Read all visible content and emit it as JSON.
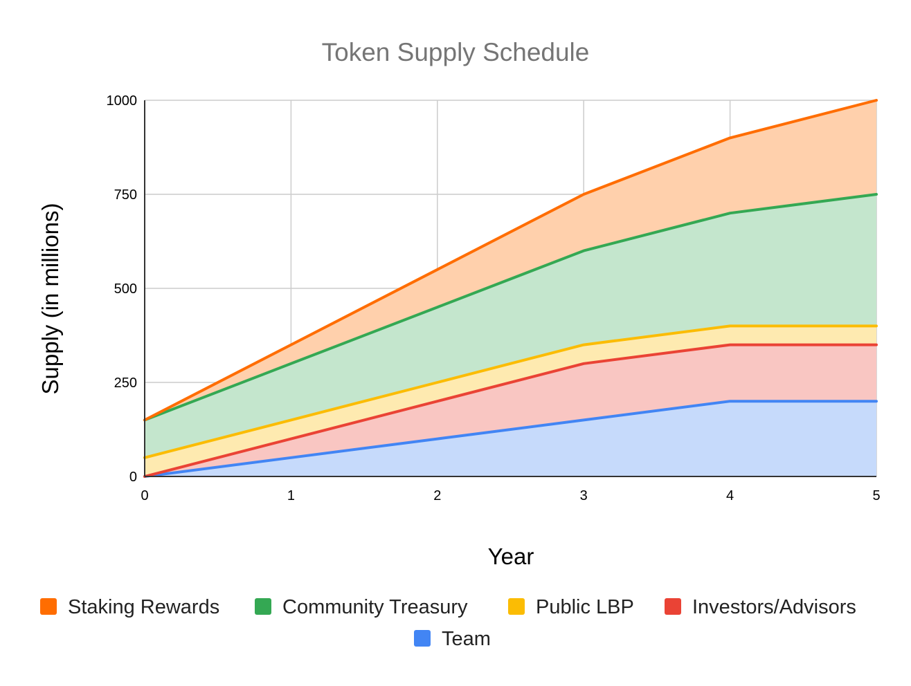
{
  "chart_data": {
    "type": "area",
    "stacked": true,
    "title": "Token Supply Schedule",
    "xlabel": "Year",
    "ylabel": "Supply (in millions)",
    "x": [
      0,
      1,
      2,
      3,
      4,
      5
    ],
    "xlim": [
      0,
      5
    ],
    "ylim": [
      0,
      1000
    ],
    "x_ticks": [
      "0",
      "1",
      "2",
      "3",
      "4",
      "5"
    ],
    "y_ticks": [
      "0",
      "250",
      "500",
      "750",
      "1000"
    ],
    "grid": true,
    "legend_position": "bottom",
    "series": [
      {
        "name": "Staking Rewards",
        "color": "#FF6D01",
        "fill": "#FFD0AC",
        "values": [
          0,
          50,
          100,
          150,
          200,
          250
        ]
      },
      {
        "name": "Community Treasury",
        "color": "#34A853",
        "fill": "#C4E6CD",
        "values": [
          100,
          150,
          200,
          250,
          300,
          350
        ]
      },
      {
        "name": "Public LBP",
        "color": "#FBBC04",
        "fill": "#FEEAB0",
        "values": [
          50,
          50,
          50,
          50,
          50,
          50
        ]
      },
      {
        "name": "Investors/Advisors",
        "color": "#EA4335",
        "fill": "#F9C6C2",
        "values": [
          0,
          50,
          100,
          150,
          150,
          150
        ]
      },
      {
        "name": "Team",
        "color": "#4285F4",
        "fill": "#C6DAFB",
        "values": [
          0,
          50,
          100,
          150,
          200,
          200
        ]
      }
    ]
  }
}
